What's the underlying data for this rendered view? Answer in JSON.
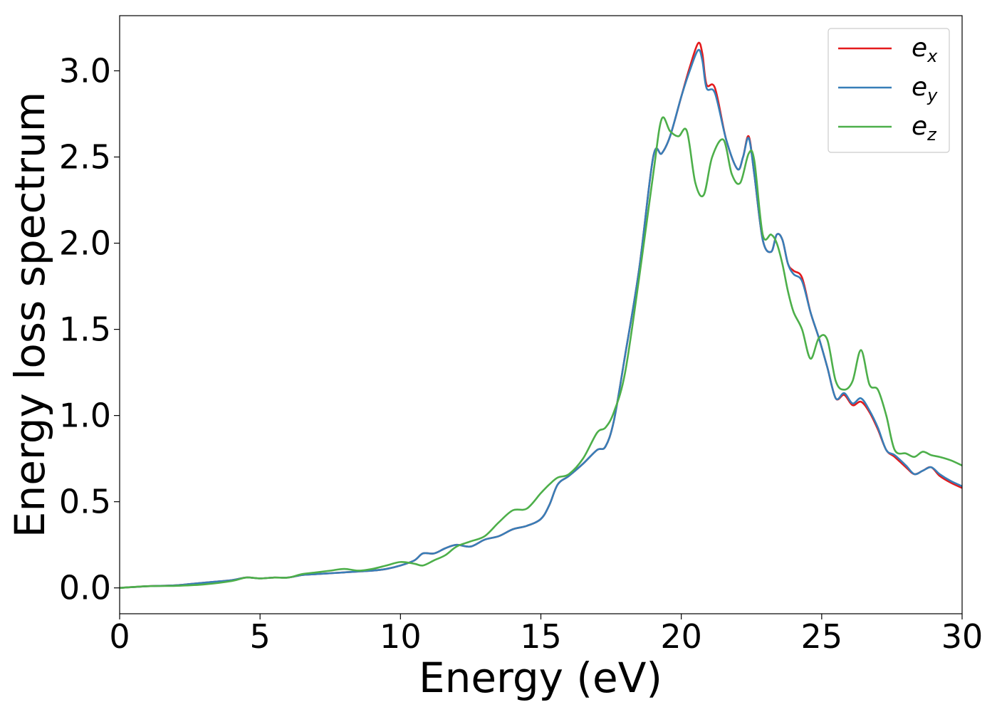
{
  "chart_data": {
    "type": "line",
    "xlabel": "Energy (eV)",
    "ylabel": "Energy loss spectrum",
    "xlim": [
      0,
      30
    ],
    "ylim": [
      -0.15,
      3.32
    ],
    "xticks": [
      0,
      5,
      10,
      15,
      20,
      25,
      30
    ],
    "xtick_labels": [
      "0",
      "5",
      "10",
      "15",
      "20",
      "25",
      "30"
    ],
    "yticks": [
      0.0,
      0.5,
      1.0,
      1.5,
      2.0,
      2.5,
      3.0
    ],
    "ytick_labels": [
      "0.0",
      "0.5",
      "1.0",
      "1.5",
      "2.0",
      "2.5",
      "3.0"
    ],
    "grid": false,
    "legend_position": "top-right",
    "series": [
      {
        "name": "e_x",
        "label_main": "e",
        "label_sub": "x",
        "color": "#e41a1c",
        "x": [
          0,
          1,
          2,
          3,
          4,
          4.5,
          5,
          5.5,
          6,
          6.5,
          7,
          7.5,
          8,
          8.5,
          9,
          9.5,
          10,
          10.5,
          10.8,
          11.2,
          11.6,
          12,
          12.5,
          13,
          13.5,
          14,
          14.5,
          15,
          15.3,
          15.6,
          16,
          16.5,
          17,
          17.3,
          17.6,
          18,
          18.5,
          19,
          19.3,
          19.6,
          20,
          20.3,
          20.6,
          20.75,
          20.9,
          21.2,
          21.6,
          22,
          22.2,
          22.4,
          22.6,
          22.9,
          23.2,
          23.4,
          23.6,
          23.8,
          24,
          24.3,
          24.6,
          24.9,
          25.2,
          25.5,
          25.8,
          26.1,
          26.4,
          26.7,
          27,
          27.3,
          27.6,
          28,
          28.3,
          28.6,
          28.9,
          29.2,
          29.6,
          30
        ],
        "y": [
          0,
          0.01,
          0.015,
          0.03,
          0.045,
          0.06,
          0.055,
          0.06,
          0.06,
          0.075,
          0.08,
          0.085,
          0.09,
          0.095,
          0.1,
          0.11,
          0.13,
          0.16,
          0.2,
          0.2,
          0.23,
          0.25,
          0.24,
          0.28,
          0.3,
          0.34,
          0.36,
          0.4,
          0.48,
          0.6,
          0.65,
          0.72,
          0.8,
          0.82,
          0.97,
          1.35,
          1.85,
          2.5,
          2.52,
          2.62,
          2.85,
          3.02,
          3.16,
          3.1,
          2.92,
          2.9,
          2.6,
          2.43,
          2.5,
          2.62,
          2.4,
          2.02,
          1.95,
          2.05,
          2.02,
          1.88,
          1.84,
          1.8,
          1.6,
          1.45,
          1.28,
          1.1,
          1.12,
          1.06,
          1.08,
          1.02,
          0.92,
          0.8,
          0.76,
          0.7,
          0.66,
          0.68,
          0.7,
          0.65,
          0.61,
          0.58
        ]
      },
      {
        "name": "e_y",
        "label_main": "e",
        "label_sub": "y",
        "color": "#377eb8",
        "x": [
          0,
          1,
          2,
          3,
          4,
          4.5,
          5,
          5.5,
          6,
          6.5,
          7,
          7.5,
          8,
          8.5,
          9,
          9.5,
          10,
          10.5,
          10.8,
          11.2,
          11.6,
          12,
          12.5,
          13,
          13.5,
          14,
          14.5,
          15,
          15.3,
          15.6,
          16,
          16.5,
          17,
          17.3,
          17.6,
          18,
          18.5,
          19,
          19.3,
          19.6,
          20,
          20.3,
          20.6,
          20.75,
          20.9,
          21.2,
          21.6,
          22,
          22.2,
          22.4,
          22.6,
          22.9,
          23.2,
          23.4,
          23.6,
          23.8,
          24,
          24.3,
          24.6,
          24.9,
          25.2,
          25.5,
          25.8,
          26.1,
          26.4,
          26.7,
          27,
          27.3,
          27.6,
          28,
          28.3,
          28.6,
          28.9,
          29.2,
          29.6,
          30
        ],
        "y": [
          0,
          0.01,
          0.015,
          0.03,
          0.045,
          0.06,
          0.055,
          0.06,
          0.06,
          0.075,
          0.08,
          0.085,
          0.09,
          0.095,
          0.1,
          0.11,
          0.13,
          0.16,
          0.2,
          0.2,
          0.23,
          0.25,
          0.24,
          0.28,
          0.3,
          0.34,
          0.36,
          0.4,
          0.48,
          0.6,
          0.65,
          0.72,
          0.8,
          0.82,
          0.97,
          1.35,
          1.85,
          2.5,
          2.52,
          2.62,
          2.85,
          3.0,
          3.12,
          3.06,
          2.9,
          2.87,
          2.6,
          2.43,
          2.5,
          2.61,
          2.4,
          2.02,
          1.95,
          2.05,
          2.02,
          1.88,
          1.82,
          1.78,
          1.6,
          1.45,
          1.28,
          1.1,
          1.13,
          1.07,
          1.1,
          1.03,
          0.93,
          0.8,
          0.77,
          0.71,
          0.66,
          0.68,
          0.7,
          0.66,
          0.62,
          0.59
        ]
      },
      {
        "name": "e_z",
        "label_main": "e",
        "label_sub": "z",
        "color": "#4daf4a",
        "x": [
          0,
          1,
          2,
          3,
          4,
          4.5,
          5,
          5.5,
          6,
          6.5,
          7,
          7.5,
          8,
          8.5,
          9,
          9.5,
          10,
          10.5,
          10.8,
          11.2,
          11.6,
          12,
          12.5,
          13,
          13.5,
          14,
          14.5,
          15,
          15.3,
          15.6,
          16,
          16.5,
          17,
          17.3,
          17.6,
          18,
          18.5,
          19,
          19.3,
          19.6,
          19.9,
          20.2,
          20.5,
          20.8,
          21.1,
          21.5,
          21.8,
          22.1,
          22.4,
          22.6,
          22.9,
          23.2,
          23.4,
          23.6,
          23.8,
          24,
          24.3,
          24.6,
          24.9,
          25.2,
          25.5,
          25.8,
          26.1,
          26.4,
          26.7,
          27,
          27.3,
          27.6,
          28,
          28.3,
          28.6,
          28.9,
          29.2,
          29.6,
          30
        ],
        "y": [
          0,
          0.01,
          0.012,
          0.02,
          0.04,
          0.06,
          0.055,
          0.06,
          0.06,
          0.08,
          0.09,
          0.1,
          0.11,
          0.1,
          0.11,
          0.13,
          0.15,
          0.14,
          0.13,
          0.16,
          0.19,
          0.24,
          0.27,
          0.3,
          0.38,
          0.45,
          0.46,
          0.55,
          0.6,
          0.64,
          0.66,
          0.75,
          0.9,
          0.93,
          1.02,
          1.25,
          1.8,
          2.4,
          2.72,
          2.65,
          2.62,
          2.65,
          2.35,
          2.28,
          2.5,
          2.6,
          2.4,
          2.35,
          2.52,
          2.48,
          2.05,
          2.05,
          2.0,
          1.88,
          1.72,
          1.6,
          1.5,
          1.33,
          1.45,
          1.44,
          1.2,
          1.15,
          1.2,
          1.38,
          1.18,
          1.15,
          1.0,
          0.8,
          0.78,
          0.76,
          0.79,
          0.77,
          0.76,
          0.74,
          0.71
        ]
      }
    ]
  }
}
